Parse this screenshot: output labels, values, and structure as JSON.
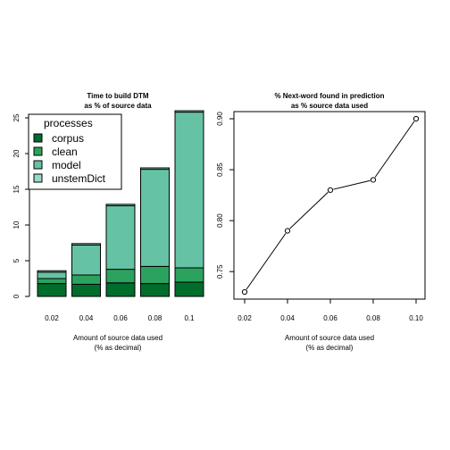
{
  "chart_data": [
    {
      "type": "bar",
      "stacked": true,
      "title": "Time to build DTM",
      "subtitle": "as % of source data",
      "xlabel": "Amount of source data used",
      "xlabel2": "(% as decimal)",
      "categories": [
        "0.02",
        "0.04",
        "0.06",
        "0.08",
        "0.1"
      ],
      "yticks": [
        "0",
        "5",
        "10",
        "15",
        "20",
        "25"
      ],
      "ylim": [
        0,
        26
      ],
      "legend_title": "processes",
      "legend_position": "top-left",
      "series": [
        {
          "name": "corpus",
          "color": "#006d2c",
          "values": [
            1.8,
            1.7,
            1.9,
            1.8,
            2.0
          ]
        },
        {
          "name": "clean",
          "color": "#2ca25f",
          "values": [
            0.7,
            1.3,
            1.9,
            2.4,
            2.0
          ]
        },
        {
          "name": "model",
          "color": "#66c2a4",
          "values": [
            0.9,
            4.2,
            8.9,
            13.6,
            21.8
          ]
        },
        {
          "name": "unstemDict",
          "color": "#99d8c9",
          "values": [
            0.2,
            0.2,
            0.2,
            0.2,
            0.2
          ]
        }
      ]
    },
    {
      "type": "line",
      "title": "% Next-word found in prediction",
      "subtitle": "as % source data used",
      "xlabel": "Amount of source data used",
      "xlabel2": "(% as decimal)",
      "x": [
        0.02,
        0.04,
        0.06,
        0.08,
        0.1
      ],
      "y": [
        0.73,
        0.79,
        0.83,
        0.84,
        0.9
      ],
      "xticks": [
        "0.02",
        "0.04",
        "0.06",
        "0.08",
        "0.10"
      ],
      "yticks": [
        "0.75",
        "0.80",
        "0.85",
        "0.90"
      ],
      "xlim": [
        0.02,
        0.1
      ],
      "ylim": [
        0.73,
        0.9
      ]
    }
  ]
}
